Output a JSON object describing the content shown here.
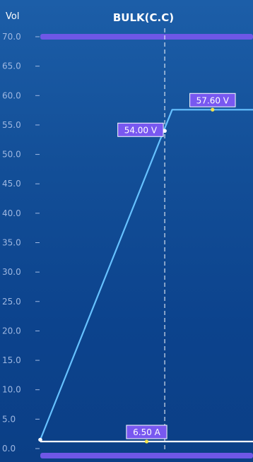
{
  "header": {
    "y_unit": "Vol",
    "stage_title": "BULK(C.C)"
  },
  "colors": {
    "bar": "#6f57e6",
    "curve": "#66c1ff",
    "current_line": "#ffffff",
    "label_bg": "#7858f0",
    "marker_yellow": "#f6e44b",
    "marker_white": "#ffffff",
    "dashed": "#ffffff",
    "axis_text": "#9fb8e2"
  },
  "chart_data": {
    "type": "line",
    "title": "BULK(C.C)",
    "ylabel": "Vol",
    "ylim": [
      0,
      70
    ],
    "y_ticks": [
      "70.0",
      "65.0",
      "60.0",
      "55.0",
      "50.0",
      "45.0",
      "40.0",
      "35.0",
      "30.0",
      "25.0",
      "20.0",
      "15.0",
      "10.0",
      "5.0",
      "0.0"
    ],
    "y_tick_values": [
      70,
      65,
      60,
      55,
      50,
      45,
      40,
      35,
      30,
      25,
      20,
      15,
      10,
      5,
      0
    ],
    "grid": false,
    "series": [
      {
        "kind": "voltage",
        "points": [
          {
            "x": 0.0,
            "y": 1.5
          },
          {
            "x": 0.62,
            "y": 57.6
          },
          {
            "x": 1.0,
            "y": 57.6
          }
        ]
      },
      {
        "kind": "current",
        "points": [
          {
            "x": 0.0,
            "y": 1.2
          },
          {
            "x": 1.0,
            "y": 1.2
          }
        ]
      }
    ],
    "markers": [
      {
        "kind": "white",
        "x": 0.585,
        "y": 54.0
      },
      {
        "kind": "yellow",
        "x": 0.81,
        "y": 57.6
      },
      {
        "kind": "yellow",
        "x": 0.5,
        "y": 1.2
      },
      {
        "kind": "white",
        "x": 0.0,
        "y": 1.5
      }
    ],
    "annotations": [
      {
        "text": "54.00 V",
        "x": 0.42,
        "y": 54.0
      },
      {
        "text": "57.60 V",
        "x": 0.81,
        "y": 57.6
      },
      {
        "text": "6.50 A",
        "x": 0.5,
        "y": 1.2
      }
    ],
    "cursor_x": 0.585
  }
}
